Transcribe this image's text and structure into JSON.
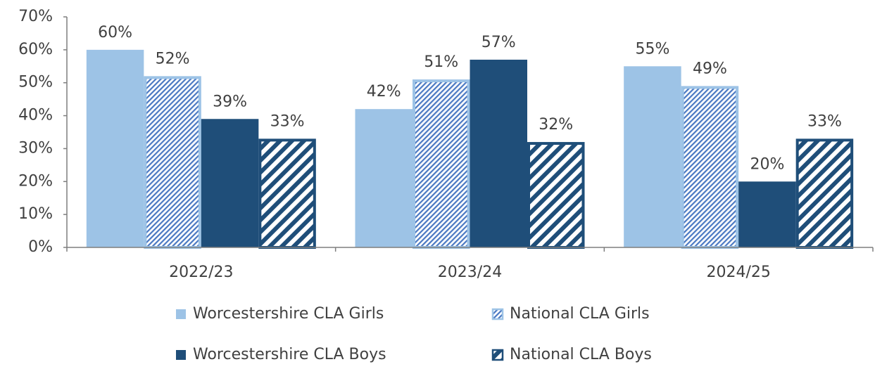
{
  "chart_data": {
    "type": "bar",
    "categories": [
      "2022/23",
      "2023/24",
      "2024/25"
    ],
    "series": [
      {
        "name": "Worcestershire CLA Girls",
        "color": "#9dc3e6",
        "values": [
          60,
          42,
          55
        ],
        "value_labels": [
          "60%",
          "42%",
          "55%"
        ]
      },
      {
        "name": "National CLA Girls",
        "color": "#9dc3e6",
        "pattern": "fine-hatch",
        "values": [
          52,
          51,
          49
        ],
        "value_labels": [
          "52%",
          "51%",
          "49%"
        ]
      },
      {
        "name": "Worcestershire CLA Boys",
        "color": "#1f4e79",
        "values": [
          39,
          57,
          20
        ],
        "value_labels": [
          "39%",
          "57%",
          "20%"
        ]
      },
      {
        "name": "National CLA Boys",
        "color": "#1f4e79",
        "pattern": "wide-hatch",
        "values": [
          33,
          32,
          33
        ],
        "value_labels": [
          "33%",
          "32%",
          "33%"
        ]
      }
    ],
    "ylim": [
      0,
      70
    ],
    "yticks": [
      {
        "value": 0,
        "label": "0%"
      },
      {
        "value": 10,
        "label": "10%"
      },
      {
        "value": 20,
        "label": "20%"
      },
      {
        "value": 30,
        "label": "30%"
      },
      {
        "value": 40,
        "label": "40%"
      },
      {
        "value": 50,
        "label": "50%"
      },
      {
        "value": 60,
        "label": "60%"
      },
      {
        "value": 70,
        "label": "70%"
      }
    ],
    "grid": false
  }
}
